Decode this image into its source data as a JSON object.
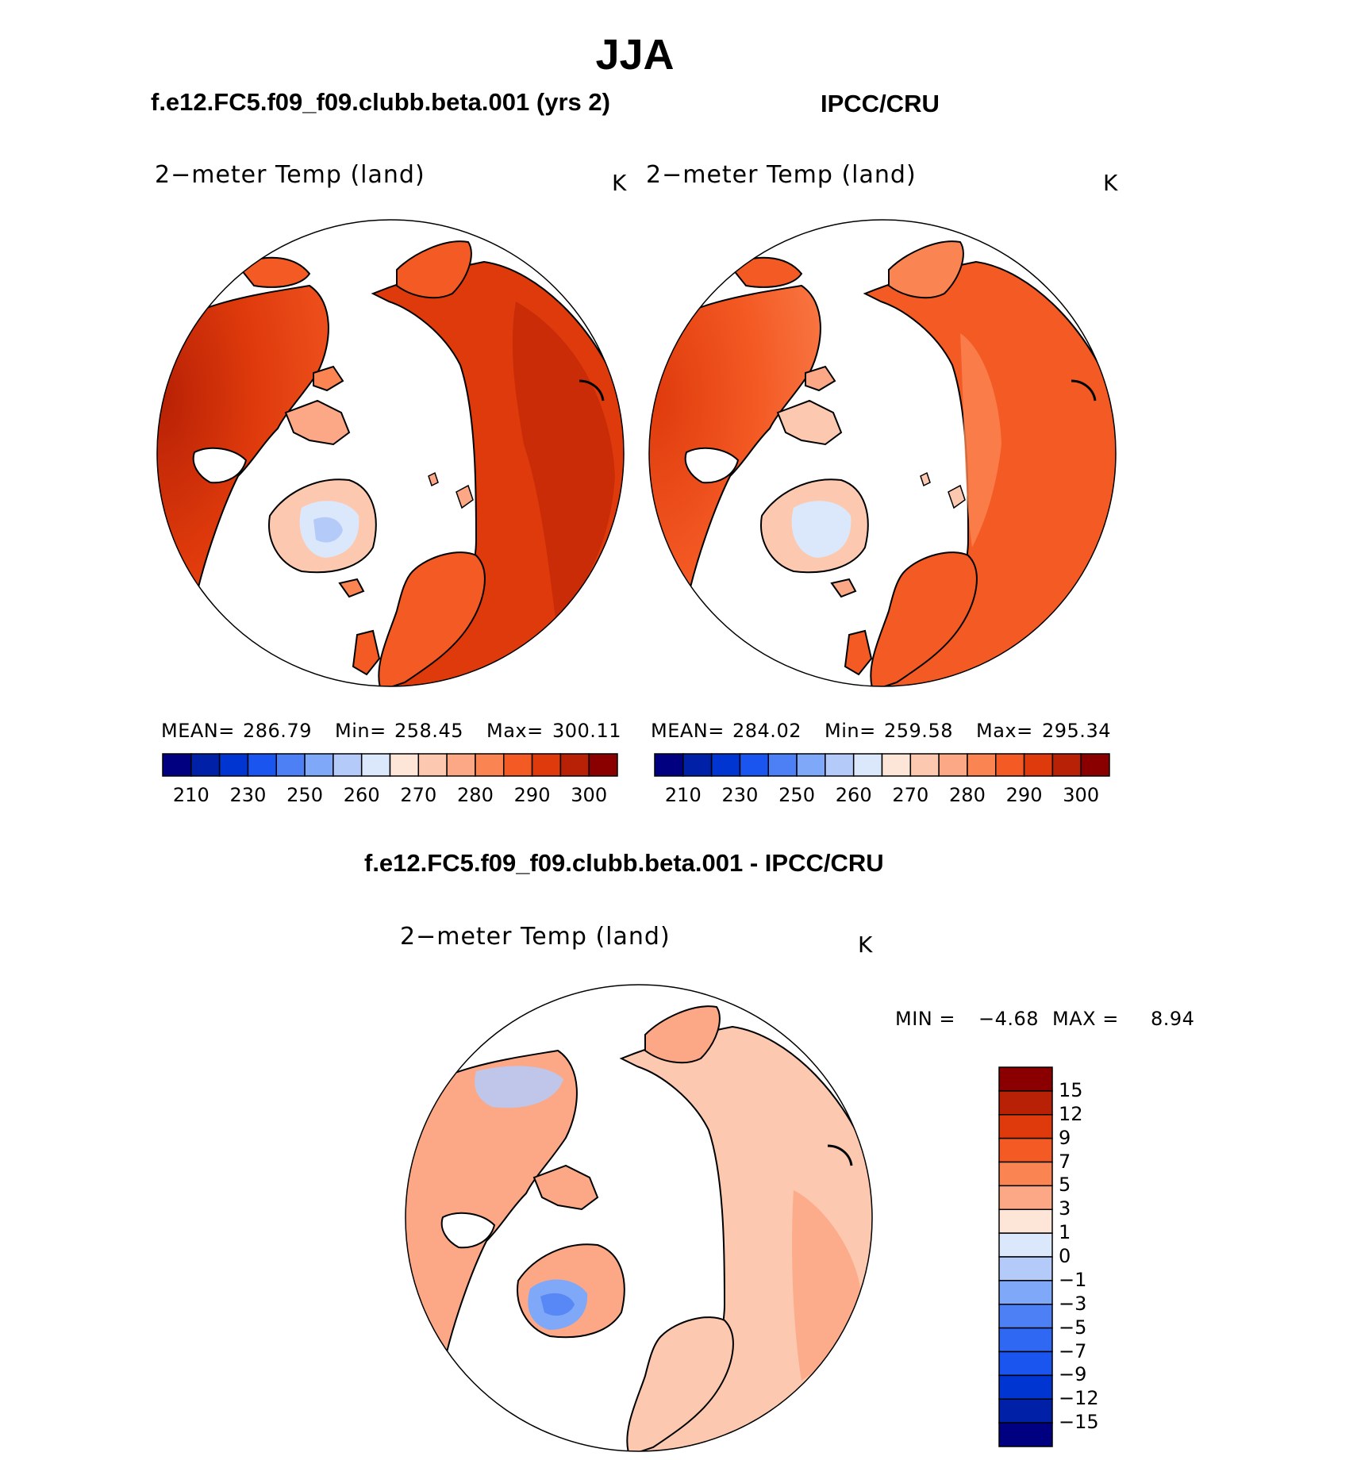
{
  "title": "JJA",
  "panels": {
    "left": {
      "subtitle": "f.e12.FC5.f09_f09.clubb.beta.001 (yrs 2)",
      "var_label": "2−meter Temp (land)",
      "units": "K",
      "mean_label": "MEAN=",
      "mean": "286.79",
      "min_label": "Min=",
      "min": "258.45",
      "max_label": "Max=",
      "max": "300.11"
    },
    "right": {
      "subtitle": "IPCC/CRU",
      "var_label": "2−meter Temp (land)",
      "units": "K",
      "mean_label": "MEAN=",
      "mean": "284.02",
      "min_label": "Min=",
      "min": "259.58",
      "max_label": "Max=",
      "max": "295.34"
    },
    "diff": {
      "subtitle": "f.e12.FC5.f09_f09.clubb.beta.001 - IPCC/CRU",
      "var_label": "2−meter Temp (land)",
      "units": "K",
      "min_label": "MIN =",
      "min": "−4.68",
      "max_label": "MAX =",
      "max": "8.94"
    }
  },
  "chart_data": [
    {
      "type": "heatmap",
      "name": "model",
      "title": "f.e12.FC5.f09_f09.clubb.beta.001 (yrs 2)",
      "variable": "2-meter Temp (land)",
      "units": "K",
      "projection": "north polar stereographic",
      "stats": {
        "mean": 286.79,
        "min": 258.45,
        "max": 300.11
      },
      "colorbar": {
        "orientation": "horizontal",
        "tick_labels": [
          "210",
          "230",
          "250",
          "260",
          "270",
          "280",
          "290",
          "300"
        ],
        "colors": [
          "#000080",
          "#0020a8",
          "#0035d2",
          "#1a55f0",
          "#4d7ff5",
          "#80a8f8",
          "#b4cbfa",
          "#dbe8fb",
          "#fde5d8",
          "#fcc9b0",
          "#fca887",
          "#fa8452",
          "#f45a24",
          "#df3a0c",
          "#b82105",
          "#8a0000"
        ]
      }
    },
    {
      "type": "heatmap",
      "name": "observations",
      "title": "IPCC/CRU",
      "variable": "2-meter Temp (land)",
      "units": "K",
      "projection": "north polar stereographic",
      "stats": {
        "mean": 284.02,
        "min": 259.58,
        "max": 295.34
      },
      "colorbar": {
        "orientation": "horizontal",
        "tick_labels": [
          "210",
          "230",
          "250",
          "260",
          "270",
          "280",
          "290",
          "300"
        ],
        "colors": [
          "#000080",
          "#0020a8",
          "#0035d2",
          "#1a55f0",
          "#4d7ff5",
          "#80a8f8",
          "#b4cbfa",
          "#dbe8fb",
          "#fde5d8",
          "#fcc9b0",
          "#fca887",
          "#fa8452",
          "#f45a24",
          "#df3a0c",
          "#b82105",
          "#8a0000"
        ]
      }
    },
    {
      "type": "heatmap",
      "name": "difference",
      "title": "f.e12.FC5.f09_f09.clubb.beta.001 - IPCC/CRU",
      "variable": "2-meter Temp (land)",
      "units": "K",
      "projection": "north polar stereographic",
      "stats": {
        "min": -4.68,
        "max": 8.94
      },
      "colorbar": {
        "orientation": "vertical",
        "tick_labels": [
          "15",
          "12",
          "9",
          "7",
          "5",
          "3",
          "1",
          "0",
          "−1",
          "−3",
          "−5",
          "−7",
          "−9",
          "−12",
          "−15"
        ],
        "colors": [
          "#8a0000",
          "#b82105",
          "#df3a0c",
          "#f45a24",
          "#fa8452",
          "#fca887",
          "#fde5d8",
          "#dbe8fb",
          "#b4cbfa",
          "#80a8f8",
          "#4d7ff5",
          "#2f68f2",
          "#1a55f0",
          "#0035d2",
          "#0020a8",
          "#000080"
        ]
      }
    }
  ]
}
